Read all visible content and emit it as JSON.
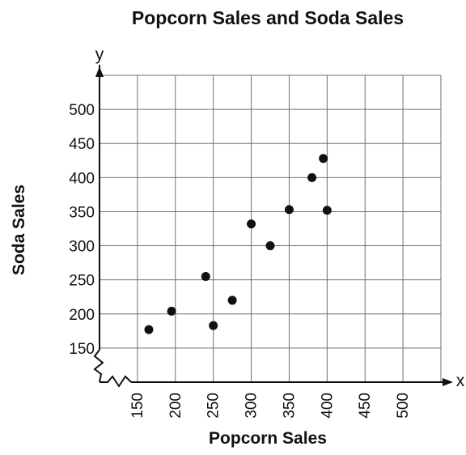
{
  "chart_data": {
    "type": "scatter",
    "title": "Popcorn Sales and Soda Sales",
    "xlabel": "Popcorn Sales",
    "ylabel": "Soda Sales",
    "x_axis_letter": "x",
    "y_axis_letter": "y",
    "xlim": [
      100,
      550
    ],
    "ylim": [
      100,
      550
    ],
    "xticks": [
      150,
      200,
      250,
      300,
      350,
      400,
      450,
      500
    ],
    "yticks": [
      150,
      200,
      250,
      300,
      350,
      400,
      450,
      500
    ],
    "axis_breaks": true,
    "grid": true,
    "points": [
      {
        "x": 165,
        "y": 177
      },
      {
        "x": 195,
        "y": 204
      },
      {
        "x": 240,
        "y": 255
      },
      {
        "x": 250,
        "y": 183
      },
      {
        "x": 275,
        "y": 220
      },
      {
        "x": 300,
        "y": 332
      },
      {
        "x": 325,
        "y": 300
      },
      {
        "x": 350,
        "y": 353
      },
      {
        "x": 380,
        "y": 400
      },
      {
        "x": 395,
        "y": 428
      },
      {
        "x": 400,
        "y": 352
      }
    ]
  }
}
